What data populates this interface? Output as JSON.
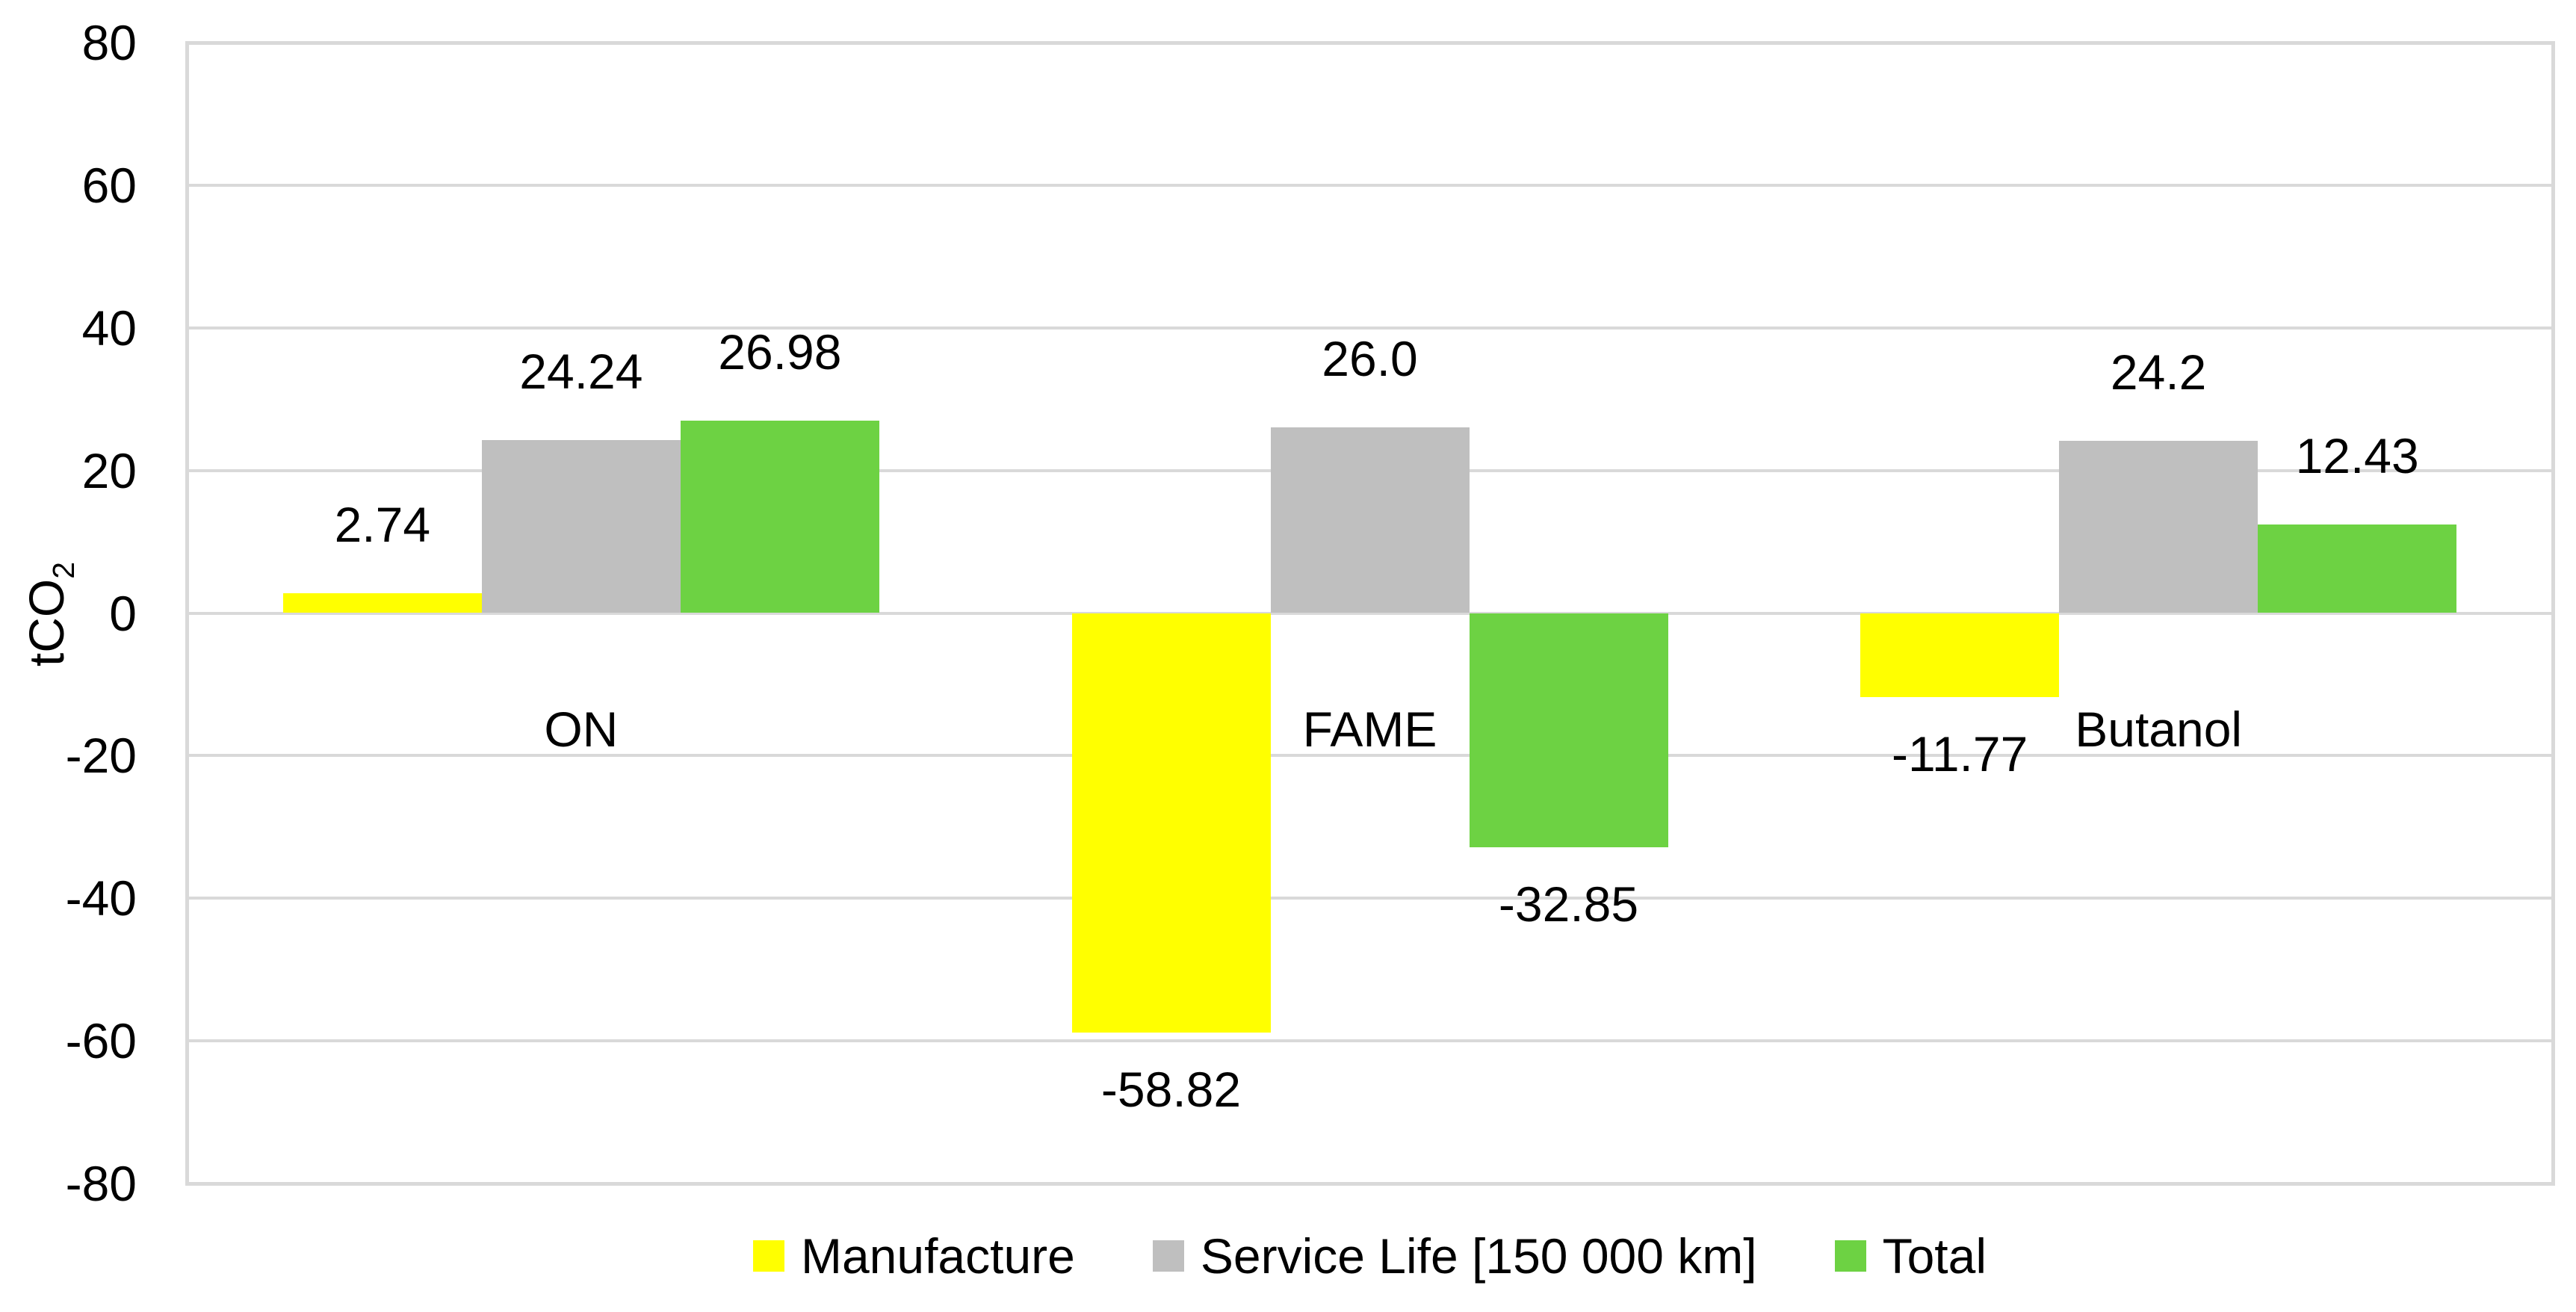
{
  "chart_data": {
    "type": "bar",
    "title": "",
    "categories": [
      "ON",
      "FAME",
      "Butanol"
    ],
    "series": [
      {
        "name": "Manufacture",
        "color": "#FFFF00",
        "values": [
          2.74,
          -58.82,
          -11.77
        ],
        "labels": [
          "2.74",
          "-58.82",
          "-11.77"
        ]
      },
      {
        "name": "Service Life [150 000 km]",
        "color": "#BFBFBF",
        "values": [
          24.24,
          26.0,
          24.2
        ],
        "labels": [
          "24.24",
          "26.0",
          "24.2"
        ]
      },
      {
        "name": "Total",
        "color": "#6DD243",
        "values": [
          26.98,
          -32.85,
          12.43
        ],
        "labels": [
          "26.98",
          "-32.85",
          "12.43"
        ]
      }
    ],
    "ylabel": "tCO2",
    "ylabel_prefix": "tCO",
    "ylabel_sub": "2",
    "ylim": [
      -80,
      80
    ],
    "ytick_step": 20,
    "yticks": [
      80,
      60,
      40,
      20,
      0,
      -20,
      -40,
      -60,
      -80
    ],
    "ytick_labels": [
      "80",
      "60",
      "40",
      "20",
      "0",
      "-20",
      "-40",
      "-60",
      "-80"
    ],
    "grid": true,
    "legend_position": "bottom",
    "colors": {
      "gridline": "#D9D9D9",
      "plot_border": "#D9D9D9",
      "text": "#000000",
      "background": "#FFFFFF"
    }
  }
}
